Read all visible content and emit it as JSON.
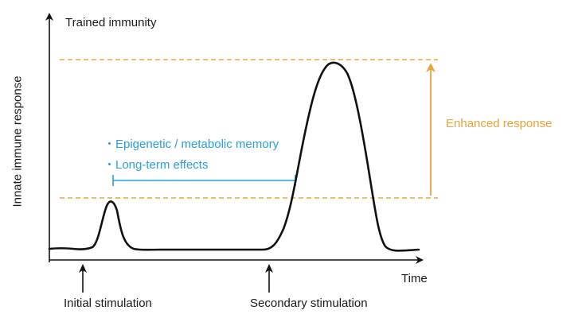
{
  "title": "Trained immunity",
  "axes": {
    "y_label": "Innate immune response",
    "x_label": "Time"
  },
  "markers": {
    "initial": "Initial stimulation",
    "secondary": "Secondary stimulation"
  },
  "memory": {
    "items": [
      "・Epigenetic / metabolic memory",
      "・Long-term effects"
    ]
  },
  "enhanced": {
    "label": "Enhanced response"
  },
  "colors": {
    "curve": "#111111",
    "axis": "#111111",
    "memory": "#2a9fd8",
    "enhanced": "#e8a33a"
  },
  "icons": {
    "up_arrow": "arrow-up-icon"
  }
}
